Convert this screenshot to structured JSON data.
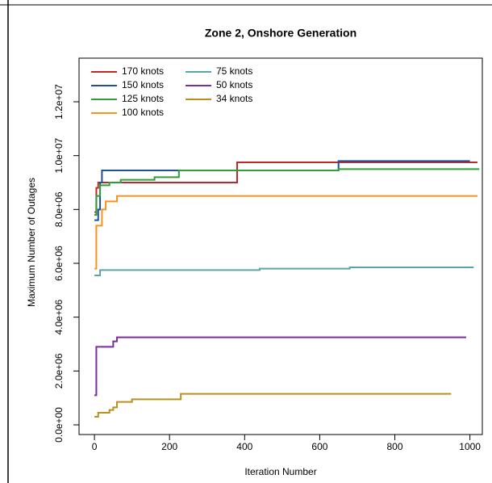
{
  "chart_data": {
    "type": "step-line",
    "title": "Zone 2, Onshore Generation",
    "x_label": "Iteration Number",
    "y_label": "Maximum Number of Outages",
    "xlim": [
      -41,
      1033
    ],
    "ylim": [
      -360000,
      13620000
    ],
    "xticks": [
      0,
      200,
      400,
      600,
      800,
      1000
    ],
    "yticks": [
      {
        "value": 0,
        "label": "0.0e+00"
      },
      {
        "value": 2000000,
        "label": "2.0e+06"
      },
      {
        "value": 4000000,
        "label": "4.0e+06"
      },
      {
        "value": 6000000,
        "label": "6.0e+06"
      },
      {
        "value": 8000000,
        "label": "8.0e+06"
      },
      {
        "value": 10000000,
        "label": "1.0e+07"
      },
      {
        "value": 12000000,
        "label": "1.2e+07"
      }
    ],
    "legend": "top-left",
    "series": [
      {
        "name": "170 knots",
        "color": "#c0272d",
        "x": [
          0,
          5,
          10,
          380,
          1020
        ],
        "values": [
          7900000,
          8800000,
          9000000,
          9750000,
          9750000
        ]
      },
      {
        "name": "150 knots",
        "color": "#1c4f9c",
        "x": [
          0,
          10,
          15,
          20,
          650,
          1000
        ],
        "values": [
          7600000,
          8000000,
          9000000,
          9450000,
          9800000,
          9800000
        ]
      },
      {
        "name": "125 knots",
        "color": "#2e9e3a",
        "x": [
          0,
          5,
          15,
          40,
          70,
          160,
          225,
          650,
          1025
        ],
        "values": [
          7800000,
          8500000,
          8900000,
          9000000,
          9100000,
          9200000,
          9450000,
          9500000,
          9500000
        ]
      },
      {
        "name": "100 knots",
        "color": "#f7941d",
        "x": [
          0,
          5,
          20,
          30,
          60,
          1020
        ],
        "values": [
          5800000,
          7400000,
          8000000,
          8300000,
          8500000,
          8500000
        ]
      },
      {
        "name": "75 knots",
        "color": "#5aa5a8",
        "x": [
          0,
          15,
          440,
          680,
          1010
        ],
        "values": [
          5550000,
          5750000,
          5800000,
          5850000,
          5850000
        ]
      },
      {
        "name": "50 knots",
        "color": "#7a2e9a",
        "x": [
          0,
          5,
          50,
          60,
          990
        ],
        "values": [
          1100000,
          2900000,
          3100000,
          3250000,
          3250000
        ]
      },
      {
        "name": "34 knots",
        "color": "#b8901a",
        "x": [
          0,
          10,
          40,
          50,
          60,
          100,
          230,
          950
        ],
        "values": [
          300000,
          450000,
          550000,
          650000,
          850000,
          950000,
          1150000,
          1150000
        ]
      }
    ]
  }
}
